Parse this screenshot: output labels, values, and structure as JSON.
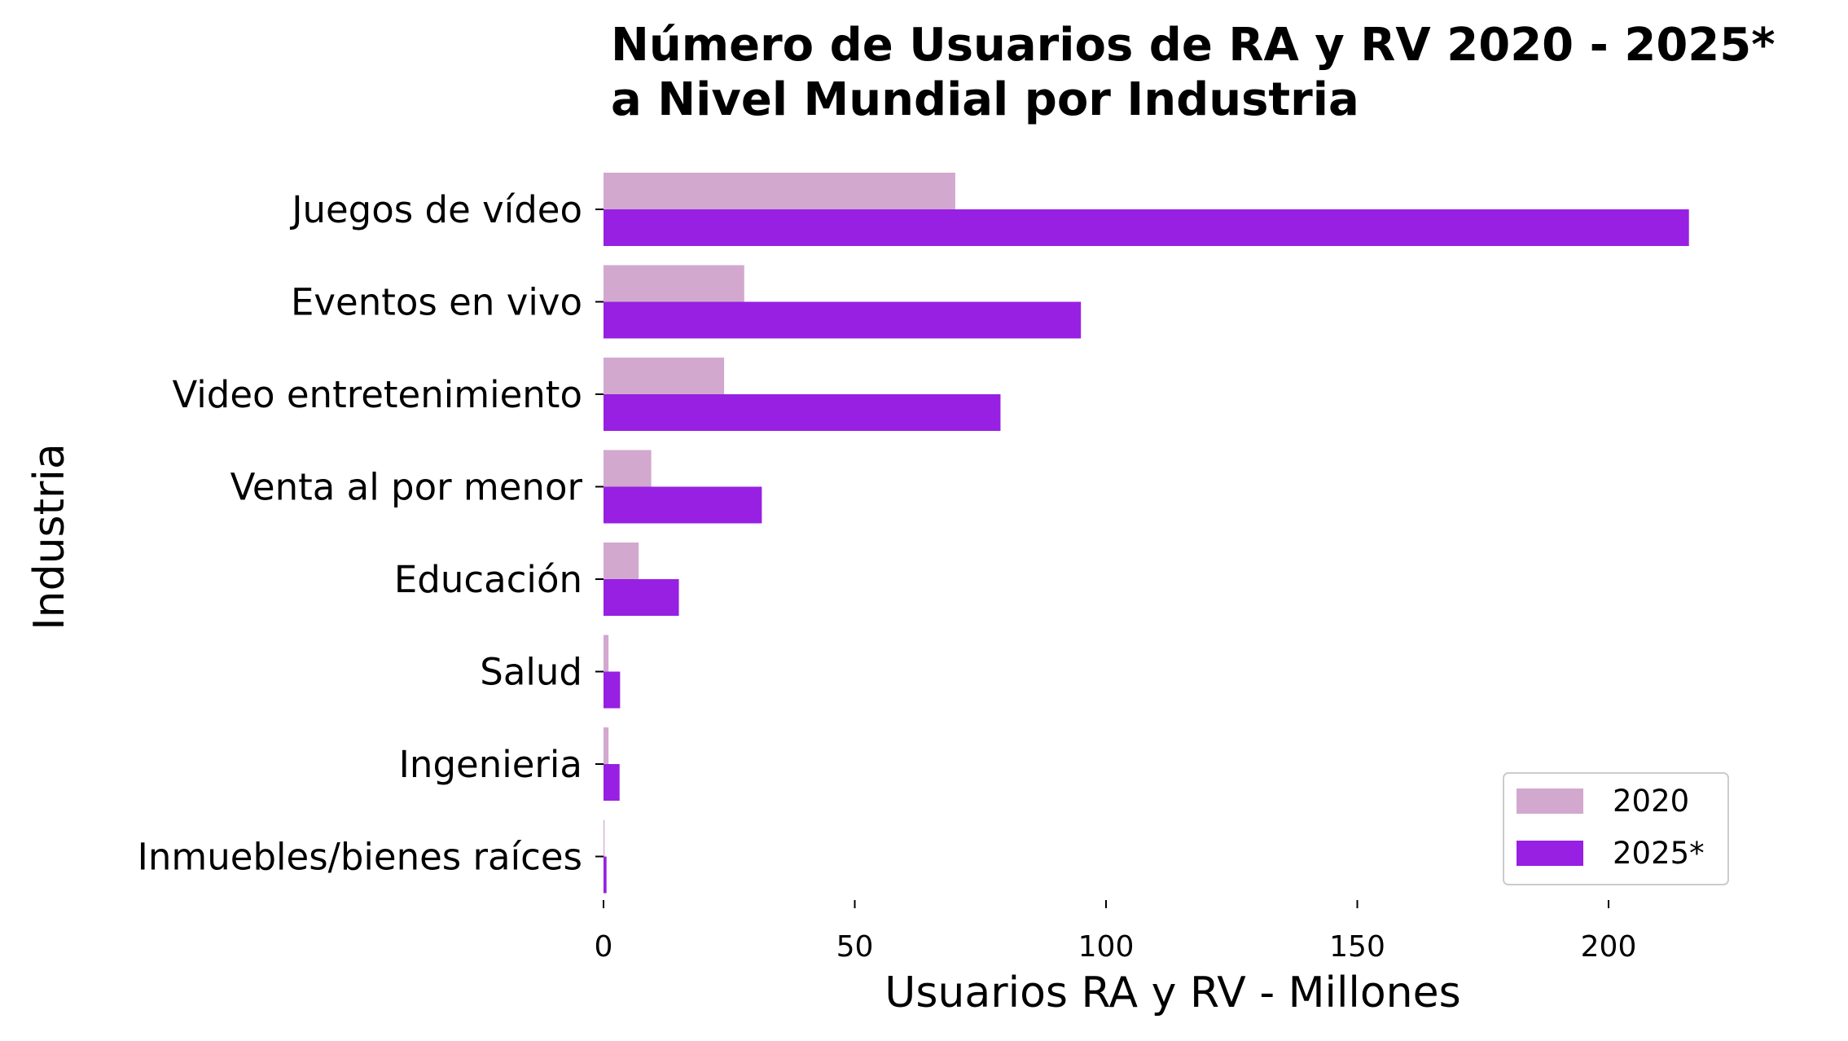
{
  "chart_data": {
    "type": "bar",
    "orientation": "horizontal",
    "title_lines": [
      "Número de Usuarios de RA y RV 2020 - 2025*",
      "a Nivel Mundial por Industria"
    ],
    "xlabel": "Usuarios RA y RV - Millones",
    "ylabel": "Industria",
    "xlim": [
      0,
      230
    ],
    "xticks": [
      0,
      50,
      100,
      150,
      200
    ],
    "grid": false,
    "legend_position": "bottom-right",
    "categories": [
      "Juegos de vídeo",
      "Eventos en vivo",
      "Video entretenimiento",
      "Venta al por menor",
      "Educación",
      "Salud",
      "Ingenieria",
      "Inmuebles/bienes raíces"
    ],
    "series": [
      {
        "name": "2020",
        "color": "#d2a8cf",
        "values": [
          70,
          28,
          24,
          9.5,
          7,
          1,
          1,
          0.2
        ]
      },
      {
        "name": "2025*",
        "color": "#9720e2",
        "values": [
          216,
          95,
          79,
          31.5,
          15,
          3.3,
          3.2,
          0.6
        ]
      }
    ]
  }
}
